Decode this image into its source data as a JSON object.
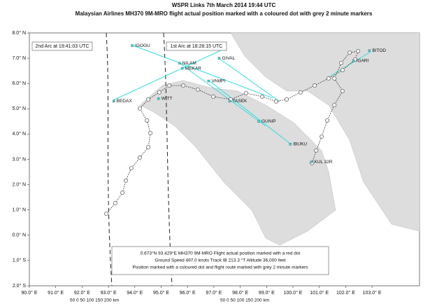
{
  "chart_data": {
    "type": "map",
    "title": "WSPR Links 7th March 2014 19:44 UTC",
    "subtitle": "Malaysian Airlines MH370 9M-MRO flight actual position marked with a coloured dot with grey 2 minute markers",
    "xlim": [
      90,
      104.8
    ],
    "ylim": [
      -2,
      8
    ],
    "xticks": [
      {
        "value": 90,
        "label": "90.0° E"
      },
      {
        "value": 91,
        "label": "91.0° E"
      },
      {
        "value": 92,
        "label": "92.0° E"
      },
      {
        "value": 93,
        "label": "93.0° E"
      },
      {
        "value": 94,
        "label": "94.0° E"
      },
      {
        "value": 95,
        "label": "95.0° E"
      },
      {
        "value": 96,
        "label": "96.0° E"
      },
      {
        "value": 97,
        "label": "97.0° E"
      },
      {
        "value": 98,
        "label": "98.0° E"
      },
      {
        "value": 99,
        "label": "99.0° E"
      },
      {
        "value": 100,
        "label": "100.0° E"
      },
      {
        "value": 101,
        "label": "101.0° E"
      },
      {
        "value": 102,
        "label": "102.0° E"
      },
      {
        "value": 103,
        "label": "103.0° E"
      }
    ],
    "yticks": [
      {
        "value": 8,
        "label": "8.0° N"
      },
      {
        "value": 7,
        "label": "7.0° N"
      },
      {
        "value": 6,
        "label": "6.0° N"
      },
      {
        "value": 5,
        "label": "5.0° N"
      },
      {
        "value": 4,
        "label": "4.0° N"
      },
      {
        "value": 3,
        "label": "3.0° N"
      },
      {
        "value": 2,
        "label": "2.0° N"
      },
      {
        "value": 1,
        "label": "1.0° N"
      },
      {
        "value": 0,
        "label": "0.0° N"
      },
      {
        "value": -1,
        "label": "1.0° S"
      },
      {
        "value": -2,
        "label": "2.0° S"
      }
    ],
    "waypoints": [
      {
        "name": "IGOGU",
        "lon": 93.9,
        "lat": 7.5
      },
      {
        "name": "GIVAL",
        "lon": 97.2,
        "lat": 7.0
      },
      {
        "name": "NILAM",
        "lon": 95.7,
        "lat": 6.8
      },
      {
        "name": "MEKAR",
        "lon": 95.8,
        "lat": 6.6
      },
      {
        "name": "VAMPI",
        "lon": 96.8,
        "lat": 6.1
      },
      {
        "name": "BEDAX",
        "lon": 93.2,
        "lat": 5.3
      },
      {
        "name": "WITT",
        "lon": 94.9,
        "lat": 5.4
      },
      {
        "name": "TASEK",
        "lon": 97.6,
        "lat": 5.3
      },
      {
        "name": "GUNIP",
        "lon": 98.7,
        "lat": 4.5
      },
      {
        "name": "IBUKU",
        "lon": 99.9,
        "lat": 3.6
      },
      {
        "name": "BITOD",
        "lon": 102.9,
        "lat": 7.3
      },
      {
        "name": "IGARI",
        "lon": 102.3,
        "lat": 6.9
      },
      {
        "name": "KUL 32R",
        "lon": 100.7,
        "lat": 2.9
      }
    ],
    "route": {
      "color": "#777",
      "lon": [
        100.72,
        100.88,
        101.09,
        101.3,
        101.57,
        101.88,
        101.57,
        101.83,
        102.15,
        102.47,
        102.36,
        101.88,
        101.35,
        100.82,
        100.29,
        99.76,
        99.36,
        98.83,
        98.22,
        97.64,
        96.98,
        96.39,
        95.84,
        95.31,
        94.93,
        94.51,
        94.19,
        94.46,
        94.59,
        94.51,
        94.19,
        93.87,
        93.66,
        93.53,
        93.26,
        92.92
      ],
      "lat": [
        2.85,
        3.35,
        3.9,
        4.54,
        5.15,
        5.7,
        6.2,
        6.81,
        7.22,
        7.28,
        6.95,
        6.53,
        6.2,
        5.92,
        5.65,
        5.37,
        5.29,
        5.48,
        5.62,
        5.37,
        5.48,
        5.76,
        5.92,
        5.92,
        5.65,
        5.37,
        5.01,
        4.54,
        4.04,
        3.48,
        3.07,
        2.65,
        2.16,
        1.68,
        1.27,
        0.85
      ]
    },
    "arc_labels": [
      "2nd Arc at 19:41:03 UTC",
      "1st Arc at 18:28:15 UTC"
    ],
    "info": [
      "0.673°N 93.429°E MH370 9M-MRO Flight actual position marked with a red dot",
      "Ground Speed 497.0 knots Track IB 213.3 °T Altitude 36,000 feet",
      "Position marked with a coloured dot and flight route marked with grey 2 minute markers"
    ],
    "scale_labels": [
      "50  0  50  100  150 200 km",
      "50  0  50  100  150 200 km"
    ]
  }
}
